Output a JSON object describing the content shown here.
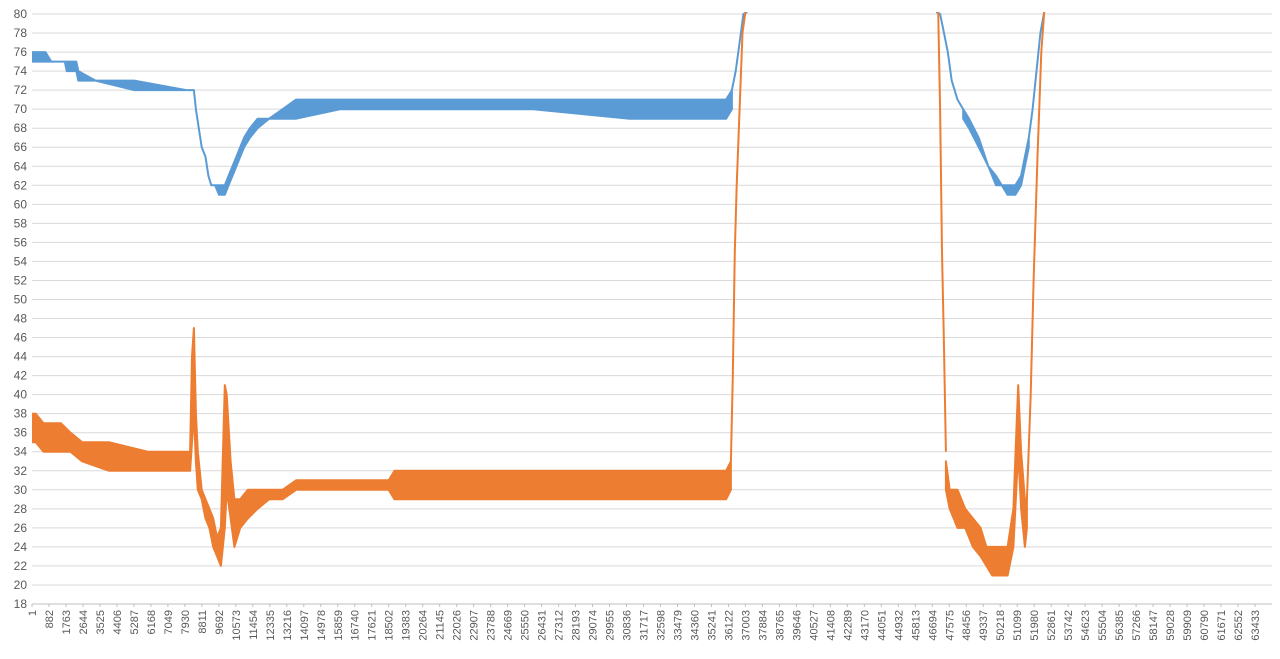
{
  "chart_data": {
    "type": "line",
    "title": "",
    "xlabel": "",
    "ylabel": "",
    "ylim": [
      18,
      80
    ],
    "y_ticks": [
      18,
      20,
      22,
      24,
      26,
      28,
      30,
      32,
      34,
      36,
      38,
      40,
      42,
      44,
      46,
      48,
      50,
      52,
      54,
      56,
      58,
      60,
      62,
      64,
      66,
      68,
      70,
      72,
      74,
      76,
      78,
      80
    ],
    "x_range": [
      1,
      64314
    ],
    "x_tick_labels": [
      "1",
      "882",
      "1763",
      "2644",
      "3525",
      "4406",
      "5287",
      "6168",
      "7049",
      "7930",
      "8811",
      "9692",
      "10573",
      "11454",
      "12335",
      "13216",
      "14097",
      "14978",
      "15859",
      "16740",
      "17621",
      "18502",
      "19383",
      "20264",
      "21145",
      "22026",
      "22907",
      "23788",
      "24669",
      "25550",
      "26431",
      "27312",
      "28193",
      "29074",
      "29955",
      "30836",
      "31717",
      "32598",
      "33479",
      "34360",
      "35241",
      "36122",
      "37003",
      "37884",
      "38765",
      "39646",
      "40527",
      "41408",
      "42289",
      "43170",
      "44051",
      "44932",
      "45813",
      "46694",
      "47575",
      "48456",
      "49337",
      "50218",
      "51099",
      "51980",
      "52861",
      "53742",
      "54623",
      "55504",
      "56385",
      "57266",
      "58147",
      "59028",
      "59909",
      "60790",
      "61671",
      "62552",
      "63433"
    ],
    "grid": "horizontal",
    "legend": "none",
    "series": [
      {
        "color": "#5B9BD5",
        "segments": [
          {
            "band": [
              [
                1,
                75,
                76
              ],
              [
                700,
                75,
                76
              ],
              [
                1000,
                75,
                75
              ],
              [
                1700,
                75,
                75
              ],
              [
                1800,
                74,
                75
              ],
              [
                2300,
                74,
                75
              ],
              [
                2400,
                73,
                74
              ],
              [
                3300,
                73,
                73
              ],
              [
                5300,
                72,
                73
              ],
              [
                8000,
                72,
                72
              ],
              [
                8400,
                72,
                72
              ],
              [
                8500,
                70,
                70
              ],
              [
                8650,
                68,
                68
              ],
              [
                8800,
                66,
                66
              ],
              [
                9000,
                65,
                65
              ],
              [
                9150,
                63,
                63
              ],
              [
                9300,
                62,
                62
              ],
              [
                9500,
                62,
                62
              ],
              [
                9700,
                61,
                62
              ],
              [
                10000,
                61,
                62
              ],
              [
                10200,
                62,
                63
              ],
              [
                10400,
                63,
                64
              ],
              [
                10600,
                64,
                65
              ],
              [
                10800,
                65,
                66
              ],
              [
                11000,
                66,
                67
              ],
              [
                11300,
                67,
                68
              ],
              [
                11700,
                68,
                69
              ],
              [
                12300,
                69,
                69
              ],
              [
                13000,
                69,
                70
              ],
              [
                13700,
                69,
                71
              ],
              [
                16000,
                70,
                71
              ],
              [
                21000,
                70,
                71
              ],
              [
                26000,
                70,
                71
              ],
              [
                31000,
                69,
                71
              ],
              [
                36000,
                69,
                71
              ],
              [
                36300,
                70,
                72
              ]
            ],
            "line": [
              [
                36300,
                72
              ],
              [
                36500,
                74
              ],
              [
                36700,
                77
              ],
              [
                36900,
                80
              ],
              [
                37100,
                82
              ]
            ]
          },
          {
            "line": [
              [
                46900,
                82
              ],
              [
                47100,
                80
              ],
              [
                47300,
                78
              ],
              [
                47500,
                76
              ],
              [
                47700,
                73
              ],
              [
                48000,
                71
              ],
              [
                48300,
                70
              ]
            ],
            "band": [
              [
                48300,
                69,
                70
              ],
              [
                48600,
                68,
                69
              ],
              [
                49100,
                66,
                67
              ],
              [
                49600,
                64,
                64
              ],
              [
                50000,
                62,
                63
              ],
              [
                50300,
                62,
                62
              ],
              [
                50600,
                61,
                62
              ],
              [
                51000,
                61,
                62
              ],
              [
                51300,
                62,
                63
              ],
              [
                51500,
                64,
                65
              ],
              [
                51700,
                66,
                67
              ]
            ],
            "line_after": [
              [
                51700,
                67
              ],
              [
                51900,
                70
              ],
              [
                52100,
                74
              ],
              [
                52300,
                78
              ],
              [
                52500,
                82
              ]
            ]
          }
        ]
      },
      {
        "color": "#ED7D31",
        "segments": [
          {
            "band": [
              [
                1,
                35,
                38
              ],
              [
                200,
                35,
                38
              ],
              [
                600,
                34,
                37
              ],
              [
                1500,
                34,
                37
              ],
              [
                2000,
                34,
                36
              ],
              [
                2600,
                33,
                35
              ],
              [
                4000,
                32,
                35
              ],
              [
                6000,
                32,
                34
              ],
              [
                7500,
                32,
                34
              ],
              [
                8200,
                32,
                34
              ],
              [
                8300,
                35,
                44
              ],
              [
                8400,
                38,
                47
              ],
              [
                8500,
                33,
                38
              ],
              [
                8600,
                30,
                34
              ],
              [
                8800,
                29,
                30
              ],
              [
                9000,
                27,
                29
              ],
              [
                9200,
                26,
                28
              ],
              [
                9400,
                24,
                27
              ],
              [
                9600,
                23,
                25
              ],
              [
                9800,
                22,
                26
              ],
              [
                10000,
                26,
                41
              ],
              [
                10100,
                30,
                40
              ],
              [
                10300,
                27,
                33
              ],
              [
                10500,
                24,
                29
              ],
              [
                10800,
                26,
                29
              ],
              [
                11200,
                27,
                30
              ],
              [
                11700,
                28,
                30
              ],
              [
                12300,
                29,
                30
              ],
              [
                13000,
                29,
                30
              ],
              [
                13700,
                30,
                31
              ],
              [
                14500,
                30,
                31
              ],
              [
                16000,
                30,
                31
              ],
              [
                18500,
                30,
                31
              ],
              [
                18800,
                29,
                32
              ],
              [
                20000,
                29,
                32
              ],
              [
                25000,
                29,
                32
              ],
              [
                30000,
                29,
                32
              ],
              [
                36000,
                29,
                32
              ],
              [
                36250,
                30,
                33
              ]
            ],
            "line": [
              [
                36250,
                33
              ],
              [
                36350,
                42
              ],
              [
                36450,
                55
              ],
              [
                36550,
                62
              ],
              [
                36700,
                70
              ],
              [
                36850,
                78
              ],
              [
                37000,
                84
              ]
            ]
          },
          {
            "line": [
              [
                47000,
                84
              ],
              [
                47100,
                70
              ],
              [
                47200,
                55
              ],
              [
                47300,
                45
              ],
              [
                47400,
                34
              ]
            ],
            "band": [
              [
                47400,
                30,
                33
              ],
              [
                47600,
                28,
                30
              ],
              [
                48000,
                26,
                30
              ],
              [
                48400,
                26,
                28
              ],
              [
                48800,
                24,
                27
              ],
              [
                49200,
                23,
                26
              ],
              [
                49500,
                22,
                24
              ],
              [
                49800,
                21,
                24
              ],
              [
                50600,
                21,
                24
              ],
              [
                50900,
                24,
                28
              ],
              [
                51050,
                30,
                36
              ],
              [
                51150,
                34,
                41
              ],
              [
                51300,
                28,
                34
              ],
              [
                51500,
                24,
                29
              ],
              [
                51600,
                26,
                29
              ]
            ],
            "line_after": [
              [
                51600,
                29
              ],
              [
                51800,
                40
              ],
              [
                51950,
                52
              ],
              [
                52150,
                65
              ],
              [
                52350,
                76
              ],
              [
                52500,
                84
              ]
            ]
          }
        ]
      }
    ]
  }
}
